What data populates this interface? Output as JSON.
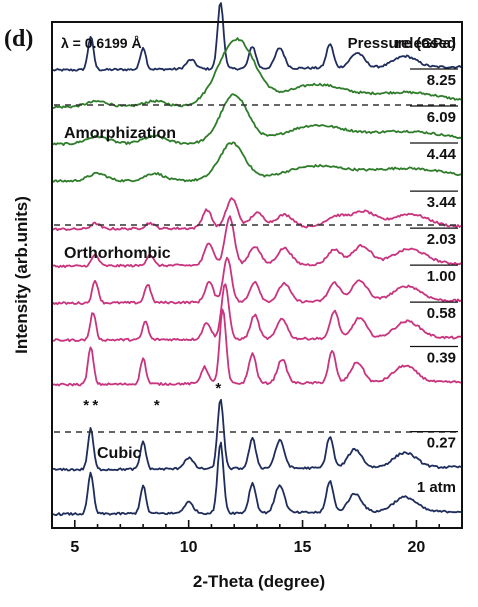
{
  "chart_data": {
    "type": "line",
    "panel_label": "(d)",
    "wavelength_label": "λ = 0.6199 Å",
    "legend_title": "Pressure (GPa)",
    "xlabel": "2-Theta (degree)",
    "ylabel": "Intensity (arb.units)",
    "xlim": [
      4,
      22
    ],
    "x_ticks": [
      5,
      10,
      15,
      20
    ],
    "y_ticks_shown": false,
    "phase_labels": [
      "Amorphization",
      "Orthorhombic",
      "Cubic"
    ],
    "impurity_markers": [
      {
        "label": "*",
        "x": 5.5
      },
      {
        "label": "*",
        "x": 5.9
      },
      {
        "label": "*",
        "x": 8.6
      },
      {
        "label": "*",
        "x": 11.3
      }
    ],
    "series": [
      {
        "name": "released",
        "phase": "released",
        "color": "#1f2d5c",
        "offset": 12,
        "base": 0.05,
        "slope": 0.005,
        "peaks": [
          [
            5.7,
            0.9,
            0.12
          ],
          [
            8.0,
            0.6,
            0.12
          ],
          [
            10.1,
            0.25,
            0.2
          ],
          [
            11.4,
            1.8,
            0.13
          ],
          [
            12.8,
            0.6,
            0.15
          ],
          [
            14.0,
            0.55,
            0.2
          ],
          [
            16.2,
            0.65,
            0.15
          ],
          [
            17.4,
            0.4,
            0.3
          ],
          [
            19.5,
            0.3,
            0.5
          ]
        ]
      },
      {
        "name": "8.25",
        "phase": "Amorphization",
        "color": "#2f7d2a",
        "offset": 11,
        "base": 0.05,
        "slope": 0.003,
        "peaks": [
          [
            6.0,
            0.15,
            0.5
          ],
          [
            8.5,
            0.15,
            0.5
          ],
          [
            12.1,
            1.8,
            0.8
          ],
          [
            15.5,
            0.55,
            1.3
          ],
          [
            19.5,
            0.35,
            1.8
          ]
        ]
      },
      {
        "name": "6.09",
        "phase": "Amorphization",
        "color": "#2f7d2a",
        "offset": 10,
        "base": 0.05,
        "slope": 0.003,
        "peaks": [
          [
            6.0,
            0.2,
            0.5
          ],
          [
            8.5,
            0.2,
            0.5
          ],
          [
            12.0,
            1.3,
            0.6
          ],
          [
            15.5,
            0.45,
            1.3
          ],
          [
            19.5,
            0.3,
            1.8
          ]
        ]
      },
      {
        "name": "4.44",
        "phase": "Amorphization",
        "color": "#2f7d2a",
        "offset": 9,
        "base": 0.05,
        "slope": 0.003,
        "peaks": [
          [
            6.0,
            0.2,
            0.4
          ],
          [
            8.5,
            0.2,
            0.4
          ],
          [
            11.9,
            1.0,
            0.55
          ],
          [
            15.5,
            0.35,
            1.3
          ],
          [
            19.5,
            0.3,
            1.8
          ]
        ]
      },
      {
        "name": "3.44",
        "phase": "Orthorhombic",
        "color": "#c8347e",
        "offset": 7.7,
        "base": 0.05,
        "slope": 0.004,
        "peaks": [
          [
            5.9,
            0.15,
            0.2
          ],
          [
            8.3,
            0.15,
            0.2
          ],
          [
            10.8,
            0.5,
            0.2
          ],
          [
            11.9,
            0.8,
            0.25
          ],
          [
            13.0,
            0.4,
            0.3
          ],
          [
            14.2,
            0.35,
            0.4
          ],
          [
            16.5,
            0.3,
            0.5
          ],
          [
            17.7,
            0.4,
            0.5
          ],
          [
            19.7,
            0.35,
            0.8
          ]
        ]
      },
      {
        "name": "2.03",
        "phase": "Orthorhombic",
        "color": "#c8347e",
        "offset": 6.7,
        "base": 0.05,
        "slope": 0.004,
        "peaks": [
          [
            5.9,
            0.3,
            0.15
          ],
          [
            8.3,
            0.3,
            0.15
          ],
          [
            10.9,
            0.6,
            0.2
          ],
          [
            11.8,
            1.3,
            0.2
          ],
          [
            12.9,
            0.5,
            0.25
          ],
          [
            14.2,
            0.45,
            0.3
          ],
          [
            16.4,
            0.4,
            0.3
          ],
          [
            17.6,
            0.5,
            0.4
          ],
          [
            19.7,
            0.4,
            0.7
          ]
        ]
      },
      {
        "name": "1.00",
        "phase": "Orthorhombic",
        "color": "#c8347e",
        "offset": 5.7,
        "base": 0.05,
        "slope": 0.004,
        "peaks": [
          [
            5.9,
            0.6,
            0.13
          ],
          [
            8.2,
            0.5,
            0.13
          ],
          [
            10.9,
            0.55,
            0.18
          ],
          [
            11.7,
            1.2,
            0.18
          ],
          [
            12.9,
            0.55,
            0.2
          ],
          [
            14.2,
            0.5,
            0.25
          ],
          [
            16.4,
            0.5,
            0.25
          ],
          [
            17.5,
            0.55,
            0.35
          ],
          [
            19.6,
            0.4,
            0.6
          ]
        ]
      },
      {
        "name": "0.58",
        "phase": "Orthorhombic",
        "color": "#c8347e",
        "offset": 4.7,
        "base": 0.05,
        "slope": 0.004,
        "peaks": [
          [
            5.8,
            0.75,
            0.12
          ],
          [
            8.1,
            0.5,
            0.12
          ],
          [
            10.8,
            0.45,
            0.18
          ],
          [
            11.6,
            1.5,
            0.16
          ],
          [
            12.9,
            0.65,
            0.18
          ],
          [
            14.1,
            0.55,
            0.22
          ],
          [
            16.4,
            0.75,
            0.18
          ],
          [
            17.5,
            0.55,
            0.3
          ],
          [
            19.6,
            0.45,
            0.55
          ]
        ]
      },
      {
        "name": "0.39",
        "phase": "Orthorhombic",
        "color": "#c8347e",
        "offset": 3.5,
        "base": 0.05,
        "slope": 0.004,
        "peaks": [
          [
            5.7,
            1.0,
            0.12
          ],
          [
            8.0,
            0.7,
            0.12
          ],
          [
            10.7,
            0.45,
            0.16
          ],
          [
            11.5,
            2.0,
            0.14
          ],
          [
            12.8,
            0.8,
            0.16
          ],
          [
            14.1,
            0.65,
            0.2
          ],
          [
            16.3,
            0.85,
            0.16
          ],
          [
            17.4,
            0.55,
            0.28
          ],
          [
            19.5,
            0.45,
            0.5
          ]
        ]
      },
      {
        "name": "0.27",
        "phase": "Cubic",
        "color": "#1f2d5c",
        "offset": 1.2,
        "base": 0.05,
        "slope": 0.004,
        "peaks": [
          [
            5.7,
            1.1,
            0.12
          ],
          [
            8.0,
            0.75,
            0.12
          ],
          [
            10.0,
            0.3,
            0.2
          ],
          [
            11.4,
            1.9,
            0.13
          ],
          [
            12.8,
            0.8,
            0.15
          ],
          [
            14.0,
            0.75,
            0.2
          ],
          [
            16.2,
            0.85,
            0.15
          ],
          [
            17.3,
            0.5,
            0.3
          ],
          [
            19.5,
            0.4,
            0.5
          ]
        ]
      },
      {
        "name": "1 atm",
        "phase": "Cubic",
        "color": "#1f2d5c",
        "offset": 0,
        "base": 0.05,
        "slope": 0.004,
        "peaks": [
          [
            5.7,
            1.1,
            0.12
          ],
          [
            8.0,
            0.75,
            0.12
          ],
          [
            10.0,
            0.3,
            0.2
          ],
          [
            11.4,
            1.9,
            0.13
          ],
          [
            12.8,
            0.8,
            0.15
          ],
          [
            14.0,
            0.75,
            0.2
          ],
          [
            16.2,
            0.85,
            0.15
          ],
          [
            17.3,
            0.5,
            0.3
          ],
          [
            19.5,
            0.4,
            0.5
          ]
        ]
      }
    ]
  }
}
